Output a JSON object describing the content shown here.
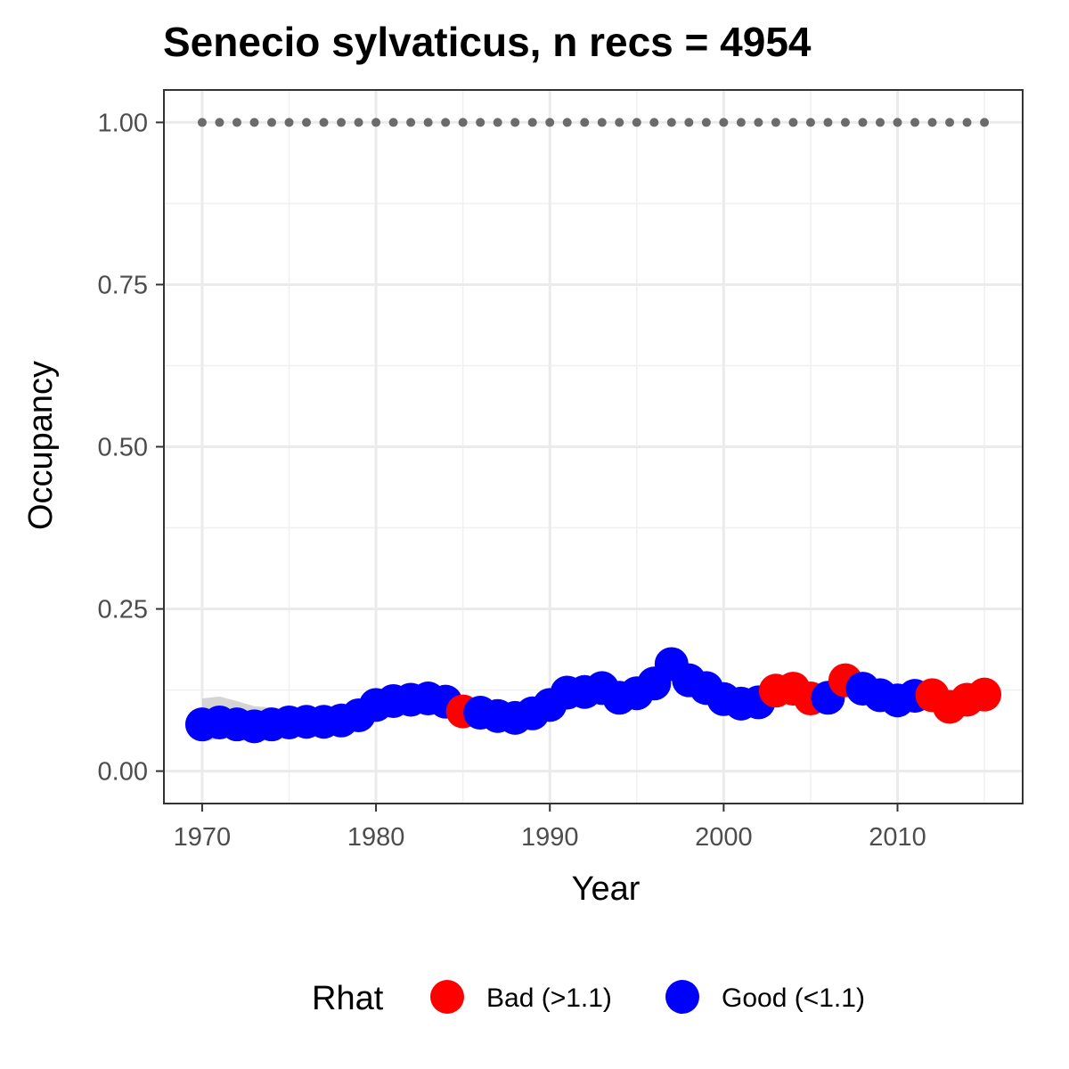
{
  "chart_data": {
    "type": "scatter",
    "title": "Senecio sylvaticus, n recs = 4954",
    "xlabel": "Year",
    "ylabel": "Occupancy",
    "xlim": [
      1967.8,
      1917.2
    ],
    "ylim": [
      -0.05,
      1.05
    ],
    "x_ticks": [
      "1970",
      "1980",
      "1990",
      "2000",
      "2010"
    ],
    "y_ticks": [
      "0.00",
      "0.25",
      "0.50",
      "0.75",
      "1.00"
    ],
    "grid": true,
    "legend": {
      "title": "Rhat",
      "position": "bottom",
      "entries": [
        {
          "label": "Bad (>1.1)",
          "color": "#ff0000"
        },
        {
          "label": "Good (<1.1)",
          "color": "#0000ff"
        }
      ]
    },
    "colors": {
      "Bad": "#ff0000",
      "Good": "#0000ff",
      "reference": "#6b6b6b",
      "ribbon": "#cccccc"
    },
    "reference_line": {
      "y": 1.0,
      "x_from": 1970,
      "x_to": 2015,
      "style": "dotted"
    },
    "series": [
      {
        "x": [
          1970,
          1971,
          1972,
          1973,
          1974,
          1975,
          1976,
          1977,
          1978,
          1979,
          1980,
          1981,
          1982,
          1983,
          1984,
          1985,
          1986,
          1987,
          1988,
          1989,
          1990,
          1991,
          1992,
          1993,
          1994,
          1995,
          1996,
          1997,
          1998,
          1999,
          2000,
          2001,
          2002,
          2003,
          2004,
          2005,
          2006,
          2007,
          2008,
          2009,
          2010,
          2011,
          2012,
          2013,
          2014,
          2015
        ],
        "y": [
          0.072,
          0.075,
          0.072,
          0.069,
          0.072,
          0.075,
          0.076,
          0.076,
          0.078,
          0.086,
          0.102,
          0.108,
          0.11,
          0.112,
          0.107,
          0.092,
          0.09,
          0.085,
          0.082,
          0.089,
          0.102,
          0.121,
          0.122,
          0.128,
          0.113,
          0.12,
          0.135,
          0.165,
          0.14,
          0.128,
          0.111,
          0.104,
          0.106,
          0.124,
          0.127,
          0.112,
          0.113,
          0.14,
          0.127,
          0.117,
          0.109,
          0.116,
          0.117,
          0.099,
          0.11,
          0.118
        ],
        "lower": [
          0.045,
          0.05,
          0.055,
          0.058,
          0.06,
          0.063,
          0.064,
          0.065,
          0.067,
          0.075,
          0.09,
          0.097,
          0.099,
          0.1,
          0.095,
          0.083,
          0.08,
          0.076,
          0.073,
          0.079,
          0.092,
          0.11,
          0.112,
          0.117,
          0.103,
          0.11,
          0.124,
          0.152,
          0.129,
          0.117,
          0.101,
          0.094,
          0.096,
          0.112,
          0.115,
          0.101,
          0.102,
          0.127,
          0.115,
          0.106,
          0.098,
          0.104,
          0.104,
          0.087,
          0.097,
          0.104
        ],
        "upper": [
          0.112,
          0.115,
          0.108,
          0.1,
          0.098,
          0.096,
          0.094,
          0.093,
          0.095,
          0.1,
          0.115,
          0.122,
          0.125,
          0.128,
          0.123,
          0.104,
          0.101,
          0.096,
          0.092,
          0.099,
          0.113,
          0.133,
          0.133,
          0.14,
          0.124,
          0.131,
          0.147,
          0.178,
          0.152,
          0.14,
          0.122,
          0.114,
          0.117,
          0.137,
          0.14,
          0.124,
          0.125,
          0.153,
          0.14,
          0.129,
          0.12,
          0.128,
          0.131,
          0.112,
          0.124,
          0.133
        ],
        "rhat": [
          "Good",
          "Good",
          "Good",
          "Good",
          "Good",
          "Good",
          "Good",
          "Good",
          "Good",
          "Good",
          "Good",
          "Good",
          "Good",
          "Good",
          "Good",
          "Bad",
          "Good",
          "Good",
          "Good",
          "Good",
          "Good",
          "Good",
          "Good",
          "Good",
          "Good",
          "Good",
          "Good",
          "Good",
          "Good",
          "Good",
          "Good",
          "Good",
          "Good",
          "Bad",
          "Bad",
          "Bad",
          "Good",
          "Bad",
          "Good",
          "Good",
          "Good",
          "Good",
          "Bad",
          "Bad",
          "Bad",
          "Bad"
        ]
      }
    ]
  }
}
